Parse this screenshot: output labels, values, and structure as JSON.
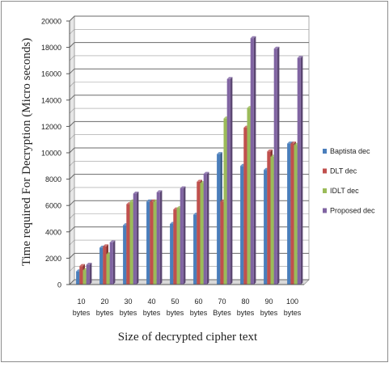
{
  "chart_data": {
    "type": "bar",
    "title": "",
    "xlabel": "Size of decrypted cipher text",
    "ylabel": "Time required For Decryption (Micro seconds)",
    "ylim": [
      0,
      20000
    ],
    "ytick_step": 2000,
    "grid": true,
    "legend_position": "right",
    "categories": [
      [
        "10",
        "bytes"
      ],
      [
        "20",
        "bytes"
      ],
      [
        "30",
        "bytes"
      ],
      [
        "40",
        "bytes"
      ],
      [
        "50",
        "bytes"
      ],
      [
        "60",
        "bytes"
      ],
      [
        "70",
        "Bytes"
      ],
      [
        "80",
        "bytes"
      ],
      [
        "90",
        "bytes"
      ],
      [
        "100",
        "bytes"
      ]
    ],
    "series": [
      {
        "name": "Baptista dec",
        "color": "#4a7ebb",
        "values": [
          1000,
          2800,
          4500,
          6300,
          4600,
          5300,
          9900,
          9000,
          8700,
          10700
        ]
      },
      {
        "name": "DLT dec",
        "color": "#c0504d",
        "values": [
          1400,
          2900,
          6100,
          6300,
          5700,
          7800,
          6300,
          11900,
          10100,
          10700
        ]
      },
      {
        "name": "IDLT dec",
        "color": "#9bbb59",
        "values": [
          1100,
          2300,
          6300,
          6300,
          5800,
          7700,
          12600,
          13400,
          9700,
          10600
        ]
      },
      {
        "name": "Proposed dec",
        "color": "#8064a2",
        "values": [
          1500,
          3200,
          6900,
          7000,
          7300,
          8400,
          15600,
          18700,
          17900,
          17200
        ]
      }
    ]
  }
}
